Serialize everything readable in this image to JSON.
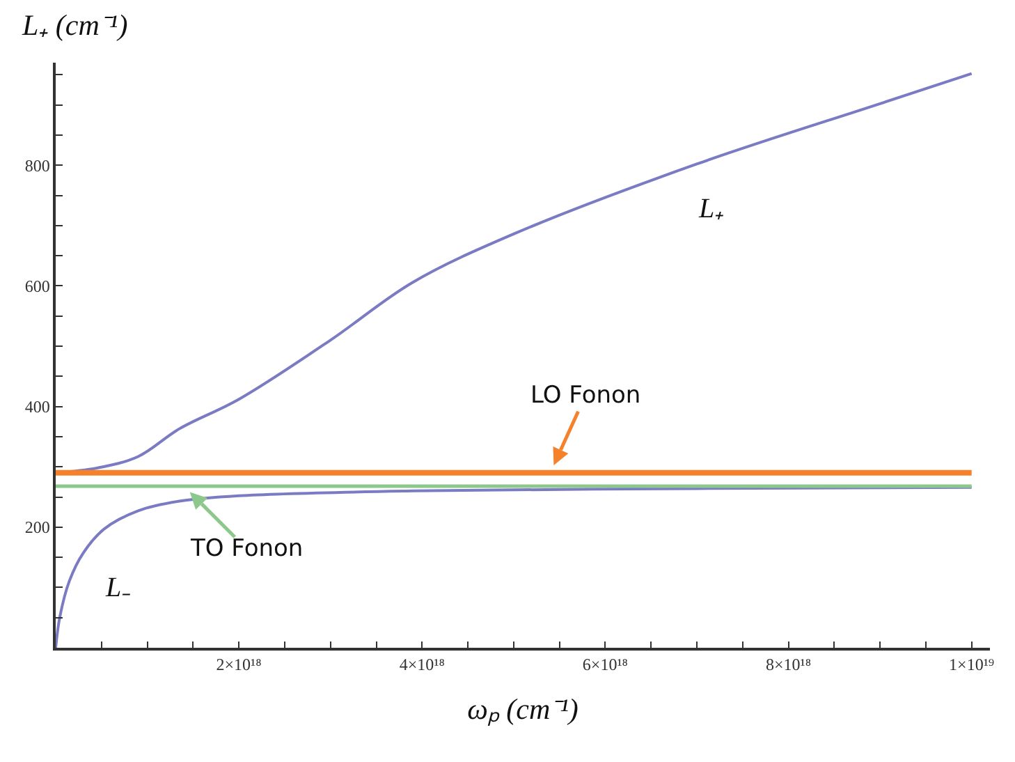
{
  "chart_data": {
    "type": "line",
    "xlabel": "ωₚ (cm⁻¹)",
    "ylabel": "L₊ (cm⁻¹)",
    "xlim": [
      0,
      1.02e+19
    ],
    "ylim": [
      0,
      970
    ],
    "xticks": [
      {
        "value": 5e+17,
        "label": null
      },
      {
        "value": 1e+18,
        "label": null
      },
      {
        "value": 1.5e+18,
        "label": null
      },
      {
        "value": 2e+18,
        "label": "2×10¹⁸"
      },
      {
        "value": 2.5e+18,
        "label": null
      },
      {
        "value": 3e+18,
        "label": null
      },
      {
        "value": 3.5e+18,
        "label": null
      },
      {
        "value": 4e+18,
        "label": "4×10¹⁸"
      },
      {
        "value": 4.5e+18,
        "label": null
      },
      {
        "value": 5e+18,
        "label": null
      },
      {
        "value": 5.5e+18,
        "label": null
      },
      {
        "value": 6e+18,
        "label": "6×10¹⁸"
      },
      {
        "value": 6.5e+18,
        "label": null
      },
      {
        "value": 7e+18,
        "label": null
      },
      {
        "value": 7.5e+18,
        "label": null
      },
      {
        "value": 8e+18,
        "label": "8×10¹⁸"
      },
      {
        "value": 8.5e+18,
        "label": null
      },
      {
        "value": 9e+18,
        "label": null
      },
      {
        "value": 9.5e+18,
        "label": null
      },
      {
        "value": 1e+19,
        "label": "1×10¹⁹"
      }
    ],
    "yticks": [
      {
        "value": 50,
        "label": null
      },
      {
        "value": 100,
        "label": null
      },
      {
        "value": 150,
        "label": null
      },
      200,
      {
        "value": 250,
        "label": null
      },
      {
        "value": 300,
        "label": null
      },
      {
        "value": 350,
        "label": null
      },
      400,
      {
        "value": 450,
        "label": null
      },
      {
        "value": 500,
        "label": null
      },
      {
        "value": 550,
        "label": null
      },
      600,
      {
        "value": 650,
        "label": null
      },
      {
        "value": 700,
        "label": null
      },
      {
        "value": 750,
        "label": null
      },
      800,
      {
        "value": 850,
        "label": null
      },
      {
        "value": 900,
        "label": null
      },
      {
        "value": 950,
        "label": null
      }
    ],
    "grid": false,
    "legend": false,
    "series": [
      {
        "name": "L₊",
        "color": "#7b7bc4",
        "x": [
          0,
          4.5e+17,
          9e+17,
          1.35e+18,
          2e+18,
          3e+18,
          3.9e+18,
          5e+18,
          7e+18,
          9e+18,
          1e+19
        ],
        "values": [
          290,
          298,
          317,
          363,
          412,
          510,
          606,
          686,
          802,
          902,
          952
        ]
      },
      {
        "name": "L₋",
        "color": "#7b7bc4",
        "x": [
          0,
          4.5e+16,
          1.5e+17,
          3e+17,
          5.3e+17,
          9e+17,
          1.35e+18,
          2e+18,
          3.9e+18,
          7e+18,
          1e+19
        ],
        "values": [
          0,
          51,
          111,
          157,
          197,
          227,
          243,
          252,
          260,
          264,
          266
        ]
      },
      {
        "color": "#f5822a",
        "x": [
          0,
          1e+19
        ],
        "values": [
          290,
          290
        ]
      },
      {
        "color": "#8cc88c",
        "x": [
          0,
          1e+19
        ],
        "values": [
          268,
          268
        ]
      }
    ],
    "annotations": [
      {
        "text": "LO Fonon",
        "x": 5.4e+18,
        "y": 290
      },
      {
        "text": "TO Fonon",
        "x": 1.4e+18,
        "y": 268
      }
    ]
  }
}
